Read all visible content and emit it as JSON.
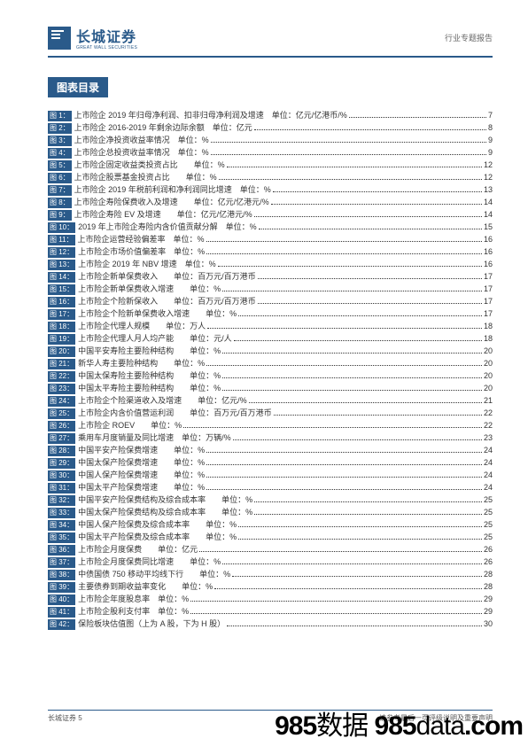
{
  "header": {
    "logo_cn": "长城证券",
    "logo_en": "GREAT WALL SECURITIES",
    "right": "行业专题报告"
  },
  "section_title": "图表目录",
  "toc": [
    {
      "n": "图 1：",
      "t": "上市险企 2019 年归母净利润、扣非归母净利润及增速　单位：亿元/亿港币/%",
      "p": "7"
    },
    {
      "n": "图 2：",
      "t": "上市险企 2016-2019 年剩余边际余额　单位：亿元",
      "p": "8"
    },
    {
      "n": "图 3：",
      "t": "上市险企净投资收益率情况　单位：%",
      "p": "9"
    },
    {
      "n": "图 4：",
      "t": "上市险企总投资收益率情况　单位：%",
      "p": "9"
    },
    {
      "n": "图 5：",
      "t": "上市险企固定收益类投资占比　　单位：%",
      "p": "12"
    },
    {
      "n": "图 6：",
      "t": "上市险企股票基金投资占比　　单位：%",
      "p": "12"
    },
    {
      "n": "图 7：",
      "t": "上市险企 2019 年税前利润和净利润同比增速　单位：%",
      "p": "13"
    },
    {
      "n": "图 8：",
      "t": "上市险企寿险保费收入及增速　　单位：亿元/亿港元/%",
      "p": "14"
    },
    {
      "n": "图 9：",
      "t": "上市险企寿险 EV 及增速　　单位：亿元/亿港元/%",
      "p": "14"
    },
    {
      "n": "图 10：",
      "t": "2019 年上市险企寿险内含价值贡献分解　单位：%",
      "p": "15"
    },
    {
      "n": "图 11：",
      "t": "上市险企运营经验偏差率　单位：%",
      "p": "16"
    },
    {
      "n": "图 12：",
      "t": "上市险企市场价值偏差率　单位：%",
      "p": "16"
    },
    {
      "n": "图 13：",
      "t": "上市险企 2019 年 NBV 增速　单位：%",
      "p": "16"
    },
    {
      "n": "图 14：",
      "t": "上市险企新单保费收入　　单位：百万元/百万港币",
      "p": "17"
    },
    {
      "n": "图 15：",
      "t": "上市险企新单保费收入增速　　单位：%",
      "p": "17"
    },
    {
      "n": "图 16：",
      "t": "上市险企个险新保收入　　单位：百万元/百万港币",
      "p": "17"
    },
    {
      "n": "图 17：",
      "t": "上市险企个险新单保费收入增速　　单位：%",
      "p": "17"
    },
    {
      "n": "图 18：",
      "t": "上市险企代理人规模　　单位：万人",
      "p": "18"
    },
    {
      "n": "图 19：",
      "t": "上市险企代理人月人均产能　　单位：元/人",
      "p": "18"
    },
    {
      "n": "图 20：",
      "t": "中国平安寿险主要险种结构　　单位：%",
      "p": "20"
    },
    {
      "n": "图 21：",
      "t": "新华人寿主要险种结构　　单位：%",
      "p": "20"
    },
    {
      "n": "图 22：",
      "t": "中国太保寿险主要险种结构　　单位：%",
      "p": "20"
    },
    {
      "n": "图 23：",
      "t": "中国太平寿险主要险种结构　　单位：%",
      "p": "20"
    },
    {
      "n": "图 24：",
      "t": "上市险企个险渠道收入及增速　　单位：亿元/%",
      "p": "21"
    },
    {
      "n": "图 25：",
      "t": "上市险企内含价值营运利润　　单位：百万元/百万港币",
      "p": "22"
    },
    {
      "n": "图 26：",
      "t": "上市险企 ROEV　　单位：%",
      "p": "22"
    },
    {
      "n": "图 27：",
      "t": "乘用车月度销量及同比增速　单位：万辆/%",
      "p": "23"
    },
    {
      "n": "图 28：",
      "t": "中国平安产险保费增速　　单位：%",
      "p": "24"
    },
    {
      "n": "图 29：",
      "t": "中国太保产险保费增速　　单位：%",
      "p": "24"
    },
    {
      "n": "图 30：",
      "t": "中国人保产险保费增速　　单位：%",
      "p": "24"
    },
    {
      "n": "图 31：",
      "t": "中国太平产险保费增速　　单位：%",
      "p": "24"
    },
    {
      "n": "图 32：",
      "t": "中国平安产险保费结构及综合成本率　　单位：%",
      "p": "25"
    },
    {
      "n": "图 33：",
      "t": "中国太保产险保费结构及综合成本率　　单位：%",
      "p": "25"
    },
    {
      "n": "图 34：",
      "t": "中国人保产险保费及综合成本率　　单位：%",
      "p": "25"
    },
    {
      "n": "图 35：",
      "t": "中国太平产险保费及综合成本率　　单位：%",
      "p": "25"
    },
    {
      "n": "图 36：",
      "t": "上市险企月度保费　　单位：亿元",
      "p": "26"
    },
    {
      "n": "图 37：",
      "t": "上市险企月度保费同比增速　　单位：%",
      "p": "26"
    },
    {
      "n": "图 38：",
      "t": "中债国债 750 移动平均线下行　　单位：%",
      "p": "28"
    },
    {
      "n": "图 39：",
      "t": "主要债券到期收益率变化　　单位：%",
      "p": "28"
    },
    {
      "n": "图 40：",
      "t": "上市险企年度股息率　单位：%",
      "p": "29"
    },
    {
      "n": "图 41：",
      "t": "上市险企股利支付率　单位：%",
      "p": "29"
    },
    {
      "n": "图 42：",
      "t": "保险板块估值图（上为 A 股，下为 H 股）",
      "p": "30"
    }
  ],
  "footer": {
    "left": "长城证券 5",
    "right": "请参考最后一页评级说明及重要声明"
  },
  "watermark": "985数据 985data.com",
  "colors": {
    "brand": "#2a5a8a",
    "text": "#333333",
    "bg": "#ffffff"
  }
}
